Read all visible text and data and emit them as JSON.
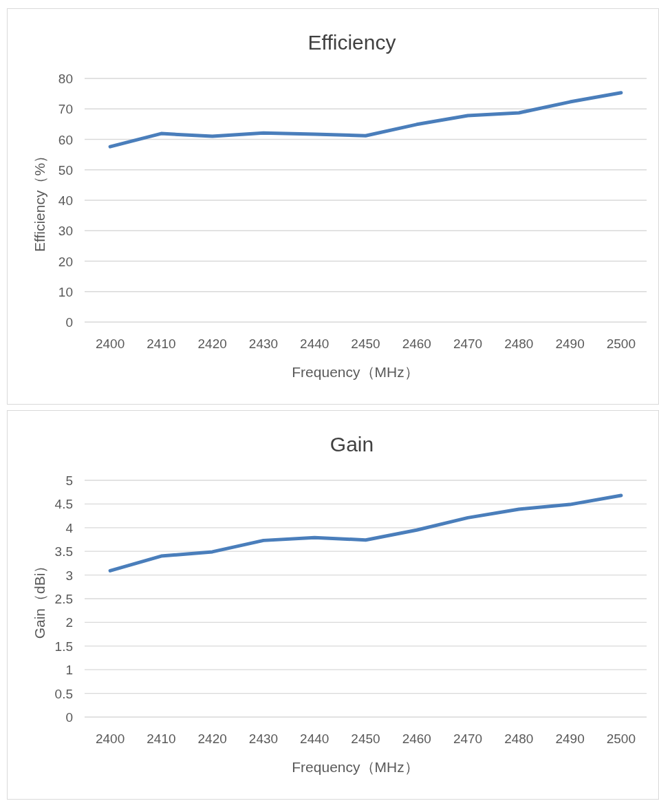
{
  "chart_data": [
    {
      "type": "line",
      "title": "Efficiency",
      "xlabel": "Frequency（MHz）",
      "ylabel": "Efficiency（%）",
      "categories": [
        "2400",
        "2410",
        "2420",
        "2430",
        "2440",
        "2450",
        "2460",
        "2470",
        "2480",
        "2490",
        "2500"
      ],
      "series": [
        {
          "color": "#4a7ebb",
          "values": [
            57.6,
            61.9,
            61.0,
            62.1,
            61.7,
            61.2,
            64.9,
            67.8,
            68.7,
            72.3,
            75.3
          ]
        }
      ],
      "ylim": [
        0,
        80
      ],
      "yticks": [
        0,
        10,
        20,
        30,
        40,
        50,
        60,
        70,
        80
      ],
      "grid": "y",
      "line_style": "solid",
      "marker": "none"
    },
    {
      "type": "line",
      "title": "Gain",
      "xlabel": "Frequency（MHz）",
      "ylabel": "Gain（dBi）",
      "categories": [
        "2400",
        "2410",
        "2420",
        "2430",
        "2440",
        "2450",
        "2460",
        "2470",
        "2480",
        "2490",
        "2500"
      ],
      "series": [
        {
          "color": "#4a7ebb",
          "values": [
            3.09,
            3.4,
            3.49,
            3.73,
            3.79,
            3.74,
            3.95,
            4.21,
            4.39,
            4.49,
            4.68
          ]
        }
      ],
      "ylim": [
        0,
        5
      ],
      "yticks": [
        0,
        0.5,
        1,
        1.5,
        2,
        2.5,
        3,
        3.5,
        4,
        4.5,
        5
      ],
      "grid": "y",
      "line_style": "solid",
      "marker": "none"
    }
  ]
}
